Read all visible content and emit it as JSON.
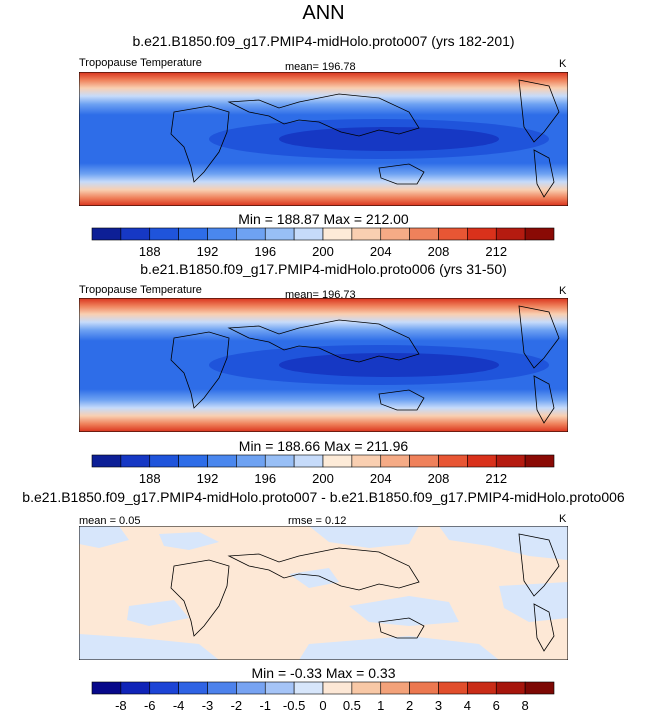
{
  "page_title": "ANN",
  "chart_data": [
    {
      "type": "heatmap",
      "title": "b.e21.B1850.f09_g17.PMIP4-midHolo.proto007 (yrs 182-201)",
      "left_label": "Tropopause Temperature",
      "center_label": "mean= 196.78",
      "right_label": "K",
      "min_max": "Min = 188.87 Max = 212.00",
      "field_range": [
        188.87,
        212.0
      ],
      "colorbar": {
        "colors": [
          "#0d1f96",
          "#1638c4",
          "#1f54db",
          "#2e6de8",
          "#4a87ee",
          "#6ea2f2",
          "#98bff6",
          "#c6dbfa",
          "#fdebd8",
          "#f9cfb1",
          "#f5ab86",
          "#ef815b",
          "#e85634",
          "#d9311b",
          "#b51b10",
          "#8a0a05"
        ],
        "tick_labels": [
          "188",
          "192",
          "196",
          "200",
          "204",
          "208",
          "212"
        ]
      }
    },
    {
      "type": "heatmap",
      "title": "b.e21.B1850.f09_g17.PMIP4-midHolo.proto006 (yrs 31-50)",
      "left_label": "Tropopause Temperature",
      "center_label": "mean= 196.73",
      "right_label": "K",
      "min_max": "Min = 188.66 Max = 211.96",
      "field_range": [
        188.66,
        211.96
      ],
      "colorbar": {
        "colors": [
          "#0d1f96",
          "#1638c4",
          "#1f54db",
          "#2e6de8",
          "#4a87ee",
          "#6ea2f2",
          "#98bff6",
          "#c6dbfa",
          "#fdebd8",
          "#f9cfb1",
          "#f5ab86",
          "#ef815b",
          "#e85634",
          "#d9311b",
          "#b51b10",
          "#8a0a05"
        ],
        "tick_labels": [
          "188",
          "192",
          "196",
          "200",
          "204",
          "208",
          "212"
        ]
      }
    },
    {
      "type": "heatmap",
      "title": "b.e21.B1850.f09_g17.PMIP4-midHolo.proto007 - b.e21.B1850.f09_g17.PMIP4-midHolo.proto006",
      "left_label": "mean =  0.05",
      "center_label": "rmse =  0.12",
      "right_label": "K",
      "min_max": "Min =  -0.33 Max =  0.33",
      "field_range": [
        -0.33,
        0.33
      ],
      "colorbar": {
        "colors": [
          "#07088a",
          "#1024b8",
          "#1c44d6",
          "#2f63e4",
          "#4d82ec",
          "#77a3f2",
          "#a5c4f7",
          "#d7e6fb",
          "#fde8d6",
          "#f8c8a6",
          "#f3a27a",
          "#ec7850",
          "#e14e2c",
          "#c92c17",
          "#a6150c",
          "#7d0804"
        ],
        "tick_labels": [
          "-8",
          "-6",
          "-4",
          "-3",
          "-2",
          "-1",
          "-0.5",
          "0",
          "0.5",
          "1",
          "2",
          "3",
          "4",
          "6",
          "8"
        ]
      }
    }
  ]
}
